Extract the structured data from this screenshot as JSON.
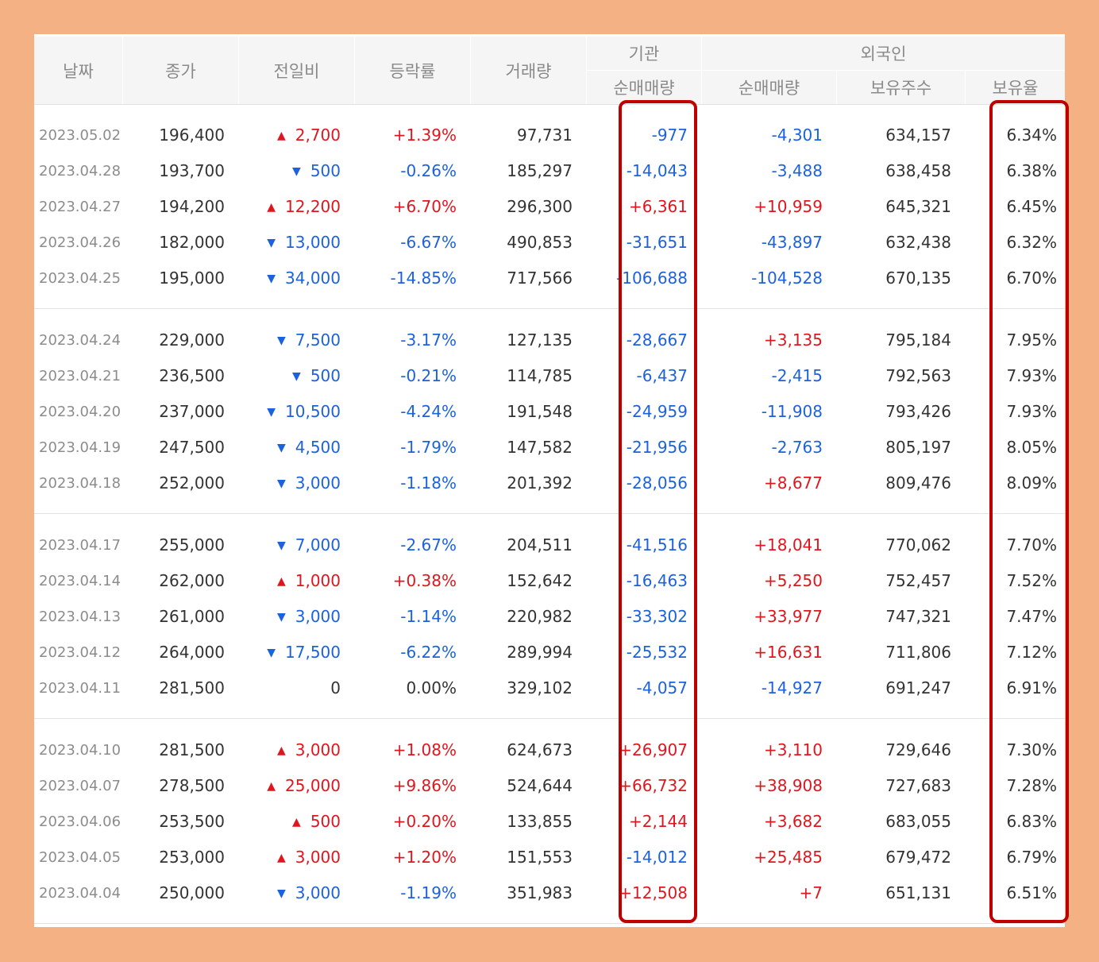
{
  "headers": {
    "date": "날짜",
    "close": "종가",
    "change": "전일비",
    "rate": "등락률",
    "volume": "거래량",
    "institution": "기관",
    "institution_net": "순매매량",
    "foreign": "외국인",
    "foreign_net": "순매매량",
    "foreign_shares": "보유주수",
    "foreign_ratio": "보유율"
  },
  "colors": {
    "up": "#e0161e",
    "down": "#1b62dc",
    "highlight": "#c00000",
    "background": "#f4b183"
  },
  "groups": [
    [
      {
        "date": "2023.05.02",
        "close": "196,400",
        "dir": "up",
        "change": "2,700",
        "rate": "+1.39%",
        "volume": "97,731",
        "inst": "-977",
        "foreign": "-4,301",
        "shares": "634,157",
        "ratio": "6.34%"
      },
      {
        "date": "2023.04.28",
        "close": "193,700",
        "dir": "down",
        "change": "500",
        "rate": "-0.26%",
        "volume": "185,297",
        "inst": "-14,043",
        "foreign": "-3,488",
        "shares": "638,458",
        "ratio": "6.38%"
      },
      {
        "date": "2023.04.27",
        "close": "194,200",
        "dir": "up",
        "change": "12,200",
        "rate": "+6.70%",
        "volume": "296,300",
        "inst": "+6,361",
        "foreign": "+10,959",
        "shares": "645,321",
        "ratio": "6.45%"
      },
      {
        "date": "2023.04.26",
        "close": "182,000",
        "dir": "down",
        "change": "13,000",
        "rate": "-6.67%",
        "volume": "490,853",
        "inst": "-31,651",
        "foreign": "-43,897",
        "shares": "632,438",
        "ratio": "6.32%"
      },
      {
        "date": "2023.04.25",
        "close": "195,000",
        "dir": "down",
        "change": "34,000",
        "rate": "-14.85%",
        "volume": "717,566",
        "inst": "-106,688",
        "foreign": "-104,528",
        "shares": "670,135",
        "ratio": "6.70%"
      }
    ],
    [
      {
        "date": "2023.04.24",
        "close": "229,000",
        "dir": "down",
        "change": "7,500",
        "rate": "-3.17%",
        "volume": "127,135",
        "inst": "-28,667",
        "foreign": "+3,135",
        "shares": "795,184",
        "ratio": "7.95%"
      },
      {
        "date": "2023.04.21",
        "close": "236,500",
        "dir": "down",
        "change": "500",
        "rate": "-0.21%",
        "volume": "114,785",
        "inst": "-6,437",
        "foreign": "-2,415",
        "shares": "792,563",
        "ratio": "7.93%"
      },
      {
        "date": "2023.04.20",
        "close": "237,000",
        "dir": "down",
        "change": "10,500",
        "rate": "-4.24%",
        "volume": "191,548",
        "inst": "-24,959",
        "foreign": "-11,908",
        "shares": "793,426",
        "ratio": "7.93%"
      },
      {
        "date": "2023.04.19",
        "close": "247,500",
        "dir": "down",
        "change": "4,500",
        "rate": "-1.79%",
        "volume": "147,582",
        "inst": "-21,956",
        "foreign": "-2,763",
        "shares": "805,197",
        "ratio": "8.05%"
      },
      {
        "date": "2023.04.18",
        "close": "252,000",
        "dir": "down",
        "change": "3,000",
        "rate": "-1.18%",
        "volume": "201,392",
        "inst": "-28,056",
        "foreign": "+8,677",
        "shares": "809,476",
        "ratio": "8.09%"
      }
    ],
    [
      {
        "date": "2023.04.17",
        "close": "255,000",
        "dir": "down",
        "change": "7,000",
        "rate": "-2.67%",
        "volume": "204,511",
        "inst": "-41,516",
        "foreign": "+18,041",
        "shares": "770,062",
        "ratio": "7.70%"
      },
      {
        "date": "2023.04.14",
        "close": "262,000",
        "dir": "up",
        "change": "1,000",
        "rate": "+0.38%",
        "volume": "152,642",
        "inst": "-16,463",
        "foreign": "+5,250",
        "shares": "752,457",
        "ratio": "7.52%"
      },
      {
        "date": "2023.04.13",
        "close": "261,000",
        "dir": "down",
        "change": "3,000",
        "rate": "-1.14%",
        "volume": "220,982",
        "inst": "-33,302",
        "foreign": "+33,977",
        "shares": "747,321",
        "ratio": "7.47%"
      },
      {
        "date": "2023.04.12",
        "close": "264,000",
        "dir": "down",
        "change": "17,500",
        "rate": "-6.22%",
        "volume": "289,994",
        "inst": "-25,532",
        "foreign": "+16,631",
        "shares": "711,806",
        "ratio": "7.12%"
      },
      {
        "date": "2023.04.11",
        "close": "281,500",
        "dir": "none",
        "change": "0",
        "rate": "0.00%",
        "volume": "329,102",
        "inst": "-4,057",
        "foreign": "-14,927",
        "shares": "691,247",
        "ratio": "6.91%"
      }
    ],
    [
      {
        "date": "2023.04.10",
        "close": "281,500",
        "dir": "up",
        "change": "3,000",
        "rate": "+1.08%",
        "volume": "624,673",
        "inst": "+26,907",
        "foreign": "+3,110",
        "shares": "729,646",
        "ratio": "7.30%"
      },
      {
        "date": "2023.04.07",
        "close": "278,500",
        "dir": "up",
        "change": "25,000",
        "rate": "+9.86%",
        "volume": "524,644",
        "inst": "+66,732",
        "foreign": "+38,908",
        "shares": "727,683",
        "ratio": "7.28%"
      },
      {
        "date": "2023.04.06",
        "close": "253,500",
        "dir": "up",
        "change": "500",
        "rate": "+0.20%",
        "volume": "133,855",
        "inst": "+2,144",
        "foreign": "+3,682",
        "shares": "683,055",
        "ratio": "6.83%"
      },
      {
        "date": "2023.04.05",
        "close": "253,000",
        "dir": "up",
        "change": "3,000",
        "rate": "+1.20%",
        "volume": "151,553",
        "inst": "-14,012",
        "foreign": "+25,485",
        "shares": "679,472",
        "ratio": "6.79%"
      },
      {
        "date": "2023.04.04",
        "close": "250,000",
        "dir": "down",
        "change": "3,000",
        "rate": "-1.19%",
        "volume": "351,983",
        "inst": "+12,508",
        "foreign": "+7",
        "shares": "651,131",
        "ratio": "6.51%"
      }
    ]
  ]
}
